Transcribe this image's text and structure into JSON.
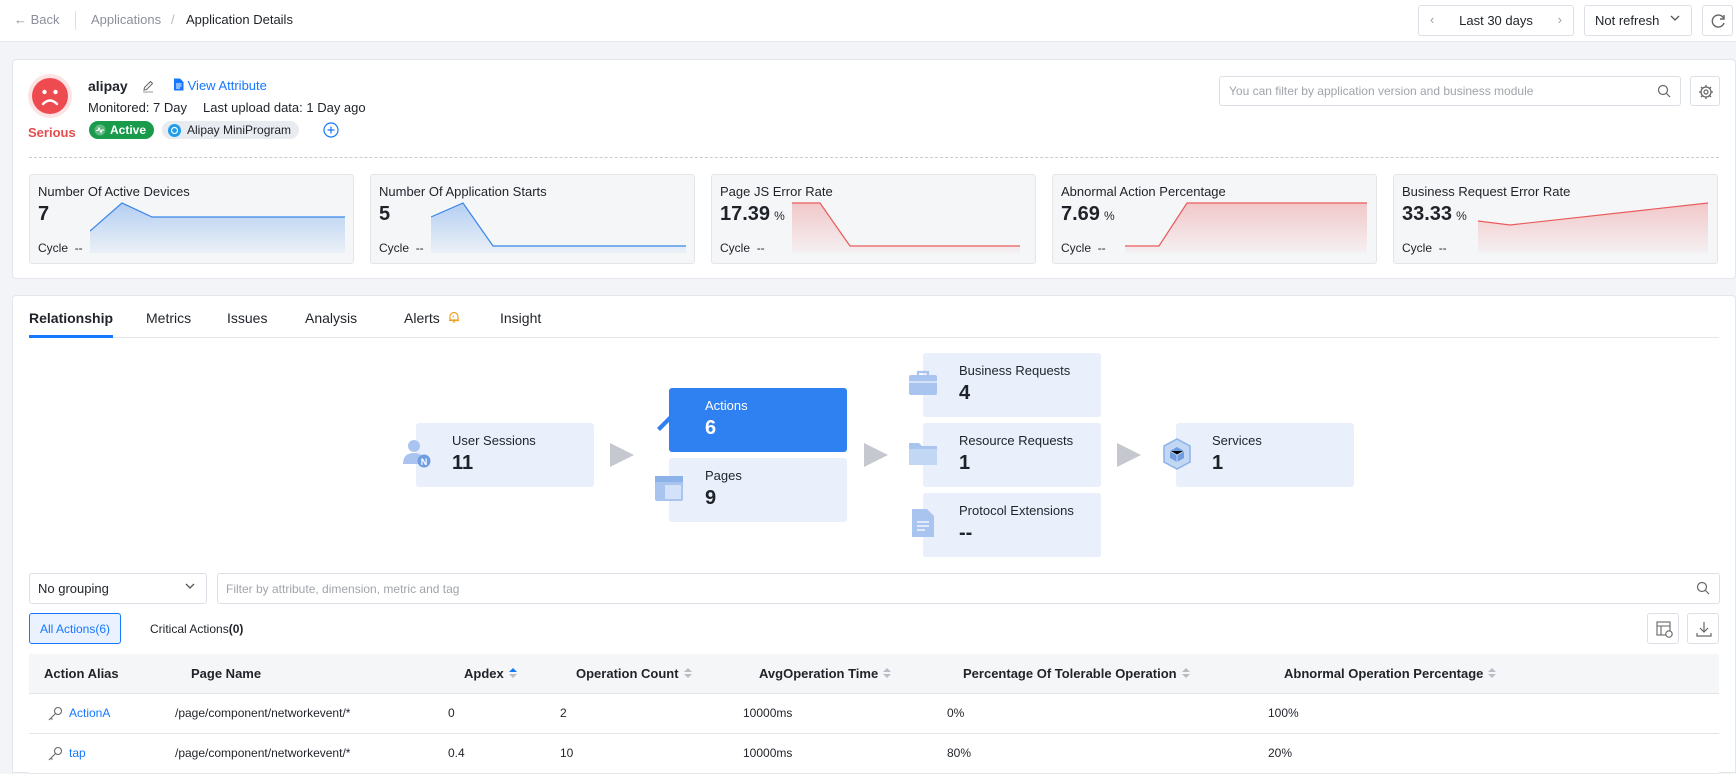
{
  "topbar": {
    "back_label": "Back",
    "breadcrumb": [
      "Applications",
      "Application Details"
    ],
    "time_range": "Last 30 days",
    "refresh_mode": "Not refresh"
  },
  "app": {
    "name": "alipay",
    "health_status": "Serious",
    "view_attribute_label": "View Attribute",
    "monitored": "Monitored: 7 Day",
    "last_upload": "Last upload data: 1 Day ago",
    "status_badge": "Active",
    "platform_badge": "Alipay MiniProgram",
    "filter_placeholder": "You can filter by application version and business module"
  },
  "metrics": [
    {
      "title": "Number Of Active Devices",
      "value": "7",
      "unit": "",
      "cycle_label": "Cycle",
      "cycle_value": "--",
      "trend_color": "#3a86e8"
    },
    {
      "title": "Number Of Application Starts",
      "value": "5",
      "unit": "",
      "cycle_label": "Cycle",
      "cycle_value": "--",
      "trend_color": "#3a86e8"
    },
    {
      "title": "Page JS Error Rate",
      "value": "17.39",
      "unit": "%",
      "cycle_label": "Cycle",
      "cycle_value": "--",
      "trend_color": "#ea5b5b"
    },
    {
      "title": "Abnormal Action Percentage",
      "value": "7.69",
      "unit": "%",
      "cycle_label": "Cycle",
      "cycle_value": "--",
      "trend_color": "#ea5b5b"
    },
    {
      "title": "Business Request Error Rate",
      "value": "33.33",
      "unit": "%",
      "cycle_label": "Cycle",
      "cycle_value": "--",
      "trend_color": "#ea5b5b"
    }
  ],
  "tabs": [
    "Relationship",
    "Metrics",
    "Issues",
    "Analysis",
    "Alerts",
    "Insight"
  ],
  "active_tab": "Relationship",
  "relationship": {
    "user_sessions": {
      "label": "User Sessions",
      "value": "11"
    },
    "actions": {
      "label": "Actions",
      "value": "6"
    },
    "pages": {
      "label": "Pages",
      "value": "9"
    },
    "business_requests": {
      "label": "Business Requests",
      "value": "4"
    },
    "resource_requests": {
      "label": "Resource Requests",
      "value": "1"
    },
    "protocol_extensions": {
      "label": "Protocol Extensions",
      "value": "--"
    },
    "services": {
      "label": "Services",
      "value": "1"
    }
  },
  "table_controls": {
    "grouping": "No grouping",
    "filter_placeholder": "Filter by attribute, dimension, metric and tag",
    "all_actions": "All Actions(6)",
    "critical_actions_label": "Critical Actions",
    "critical_actions_count": "(0)"
  },
  "table": {
    "columns": [
      "Action Alias",
      "Page Name",
      "Apdex",
      "Operation Count",
      "AvgOperation Time",
      "Percentage Of Tolerable Operation",
      "Abnormal Operation Percentage"
    ],
    "rows": [
      [
        "ActionA",
        "/page/component/networkevent/*",
        "0",
        "2",
        "10000ms",
        "0%",
        "100%"
      ],
      [
        "tap",
        "/page/component/networkevent/*",
        "0.4",
        "10",
        "10000ms",
        "80%",
        "20%"
      ]
    ]
  }
}
